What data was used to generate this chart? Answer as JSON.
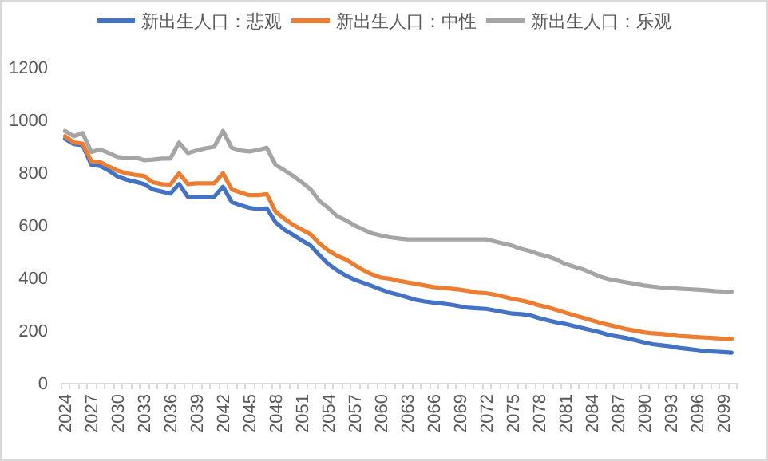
{
  "chart_data": {
    "type": "line",
    "legend": "top",
    "ylim": [
      0,
      1200
    ],
    "yticks": [
      0,
      200,
      400,
      600,
      800,
      1000,
      1200
    ],
    "categories": [
      "2024",
      null,
      null,
      "2027",
      null,
      null,
      "2030",
      null,
      null,
      "2033",
      null,
      null,
      "2036",
      null,
      null,
      "2039",
      null,
      null,
      "2042",
      null,
      null,
      "2045",
      null,
      null,
      "2048",
      null,
      null,
      "2051",
      null,
      null,
      "2054",
      null,
      null,
      "2057",
      null,
      null,
      "2060",
      null,
      null,
      "2063",
      null,
      null,
      "2066",
      null,
      null,
      "2069",
      null,
      null,
      "2072",
      null,
      null,
      "2075",
      null,
      null,
      "2078",
      null,
      null,
      "2081",
      null,
      null,
      "2084",
      null,
      null,
      "2087",
      null,
      null,
      "2090",
      null,
      null,
      "2093",
      null,
      null,
      "2096",
      null,
      null,
      "2099",
      null
    ],
    "series": [
      {
        "name": "新出生人口：悲观",
        "color": "#4472c4",
        "values": [
          927,
          907,
          903,
          828,
          824,
          806,
          784,
          772,
          764,
          755,
          735,
          727,
          719,
          755,
          707,
          705,
          705,
          707,
          745,
          687,
          675,
          665,
          660,
          663,
          610,
          582,
          562,
          541,
          521,
          485,
          452,
          428,
          408,
          392,
          380,
          368,
          355,
          343,
          335,
          325,
          315,
          309,
          305,
          301,
          297,
          291,
          285,
          283,
          281,
          275,
          269,
          263,
          261,
          257,
          246,
          238,
          230,
          224,
          216,
          208,
          200,
          192,
          182,
          176,
          170,
          162,
          154,
          147,
          143,
          139,
          133,
          129,
          125,
          121,
          119,
          117,
          115
        ]
      },
      {
        "name": "新出生人口：中性",
        "color": "#ed7d31",
        "values": [
          937,
          913,
          909,
          842,
          838,
          822,
          806,
          796,
          790,
          786,
          762,
          755,
          753,
          796,
          755,
          758,
          758,
          758,
          796,
          735,
          723,
          713,
          713,
          717,
          650,
          624,
          600,
          582,
          564,
          529,
          503,
          483,
          469,
          448,
          428,
          412,
          400,
          396,
          388,
          382,
          376,
          370,
          364,
          360,
          358,
          354,
          349,
          343,
          341,
          335,
          327,
          319,
          313,
          305,
          295,
          287,
          277,
          267,
          257,
          248,
          238,
          228,
          220,
          212,
          204,
          198,
          192,
          188,
          186,
          182,
          178,
          176,
          174,
          172,
          170,
          168,
          168
        ]
      },
      {
        "name": "新出生人口：乐观",
        "color": "#a5a5a5",
        "values": [
          957,
          937,
          949,
          877,
          887,
          873,
          858,
          855,
          856,
          846,
          848,
          852,
          852,
          913,
          873,
          883,
          891,
          897,
          957,
          893,
          883,
          879,
          885,
          893,
          828,
          808,
          786,
          762,
          735,
          691,
          665,
          634,
          618,
          598,
          582,
          568,
          560,
          553,
          549,
          545,
          545,
          545,
          545,
          545,
          545,
          545,
          545,
          545,
          545,
          537,
          529,
          521,
          509,
          501,
          489,
          481,
          469,
          452,
          442,
          432,
          418,
          404,
          394,
          388,
          382,
          376,
          370,
          366,
          362,
          360,
          358,
          356,
          354,
          352,
          349,
          347,
          347
        ]
      }
    ]
  }
}
